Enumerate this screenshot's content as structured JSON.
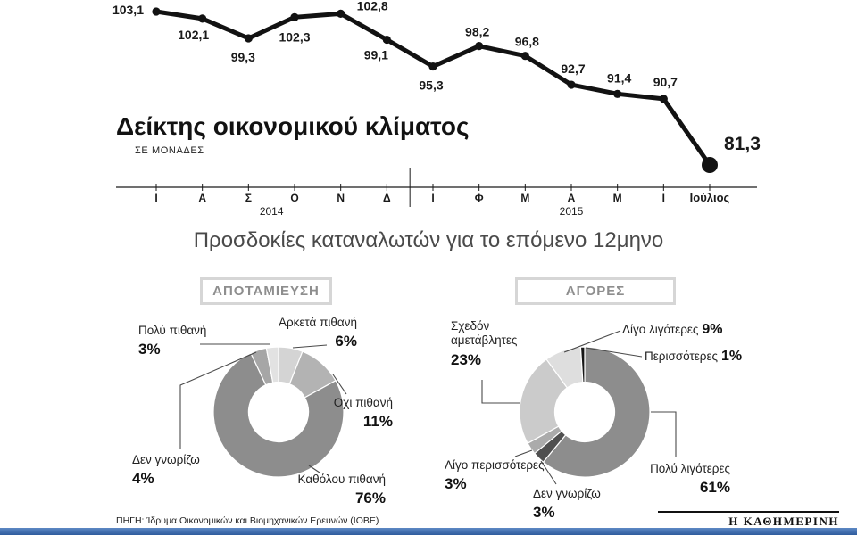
{
  "section": {
    "title": "Προσδοκίες καταναλωτών για το επόμενο 12μηνο"
  },
  "footer": {
    "source": "ΠΗΓΗ: Ίδρυμα Οικονομικών και Βιομηχανικών Ερευνών (ΙΟΒΕ)",
    "brand": "Η ΚΑΘΗΜΕΡΙΝΗ",
    "bar_color": "#2e5b9d"
  },
  "chart_data": [
    {
      "type": "line",
      "title": "Δείκτης οικονομικού κλίματος",
      "subtitle": "ΣΕ ΜΟΝΑΔΕΣ",
      "x": [
        "Ι",
        "Α",
        "Σ",
        "Ο",
        "Ν",
        "Δ",
        "Ι",
        "Φ",
        "Μ",
        "Α",
        "Μ",
        "Ι",
        "Ιούλιος"
      ],
      "year_groups": [
        {
          "label": "2014",
          "span": [
            0,
            5
          ]
        },
        {
          "label": "2015",
          "span": [
            6,
            12
          ]
        }
      ],
      "values": [
        103.1,
        102.1,
        99.3,
        102.3,
        102.8,
        99.1,
        95.3,
        98.2,
        96.8,
        92.7,
        91.4,
        90.7,
        81.3
      ],
      "value_labels": [
        "103,1",
        "102,1",
        "99,3",
        "102,3",
        "102,8",
        "99,1",
        "95,3",
        "98,2",
        "96,8",
        "92,7",
        "91,4",
        "90,7",
        "81,3"
      ],
      "ylim": [
        80,
        104
      ],
      "line_color": "#121212",
      "legend": "none",
      "grid": "off"
    },
    {
      "type": "pie",
      "title": "ΑΠΟΤΑΜΙΕΥΣΗ",
      "slices": [
        {
          "label": "Αρκετά πιθανή",
          "value": 6,
          "display": "6%",
          "color": "#d4d4d4"
        },
        {
          "label": "Οχι πιθανή",
          "value": 11,
          "display": "11%",
          "color": "#b3b3b3"
        },
        {
          "label": "Καθόλου πιθανή",
          "value": 76,
          "display": "76%",
          "color": "#8d8d8d"
        },
        {
          "label": "Δεν γνωρίζω",
          "value": 4,
          "display": "4%",
          "color": "#a6a6a6"
        },
        {
          "label": "Πολύ πιθανή",
          "value": 3,
          "display": "3%",
          "color": "#e2e2e2"
        }
      ]
    },
    {
      "type": "pie",
      "title": "ΑΓΟΡΕΣ",
      "slices": [
        {
          "label": "Πολύ λιγότερες",
          "value": 61,
          "display": "61%",
          "color": "#8d8d8d"
        },
        {
          "label": "Δεν γνωρίζω",
          "value": 3,
          "display": "3%",
          "color": "#4f4f4f"
        },
        {
          "label": "Λίγο περισσότερες",
          "value": 3,
          "display": "3%",
          "color": "#ababab"
        },
        {
          "label": "Σχεδόν αμετάβλητες",
          "value": 23,
          "display": "23%",
          "color": "#cbcbcb"
        },
        {
          "label": "Λίγο λιγότερες",
          "value": 9,
          "display": "9%",
          "color": "#dedede"
        },
        {
          "label": "Περισσότερες",
          "value": 1,
          "display": "1%",
          "color": "#161616"
        }
      ]
    }
  ]
}
